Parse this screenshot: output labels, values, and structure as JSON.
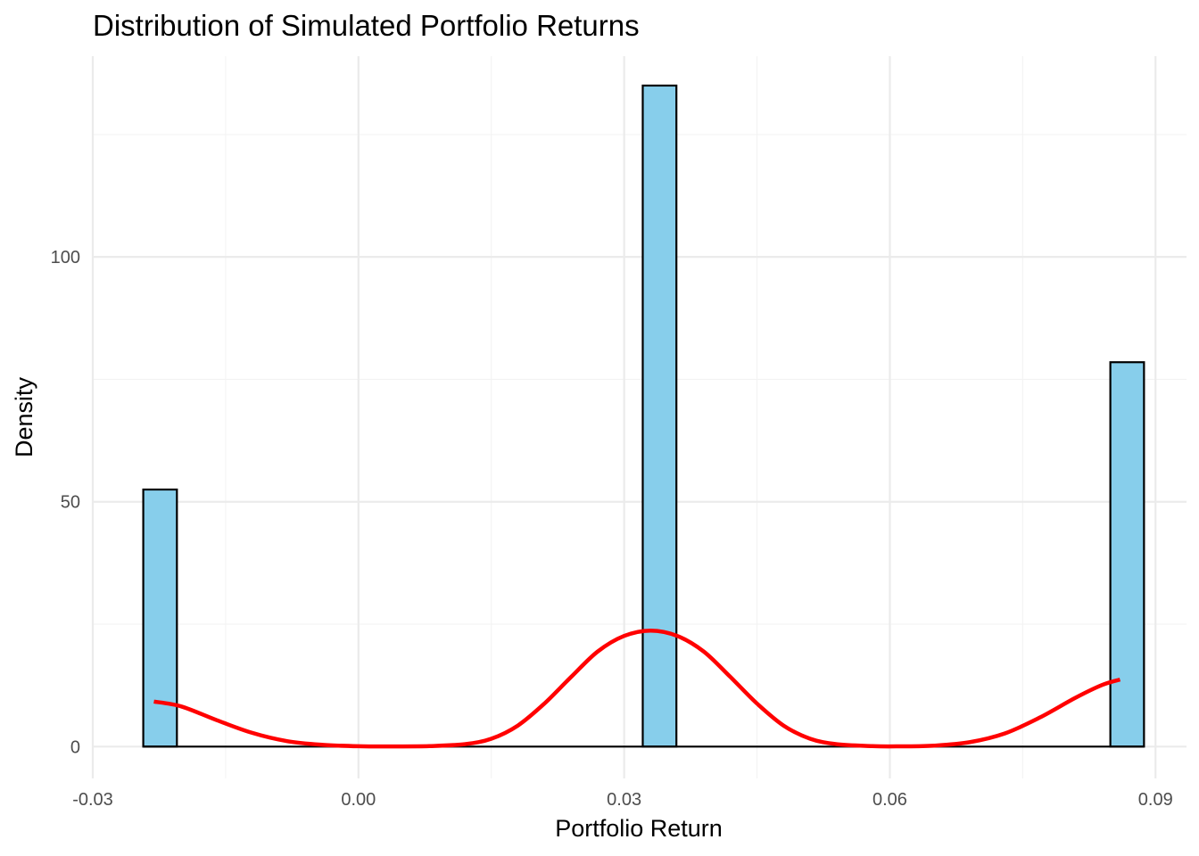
{
  "chart_data": {
    "type": "histogram",
    "title": "Distribution of Simulated Portfolio Returns",
    "xlabel": "Portfolio Return",
    "ylabel": "Density",
    "xlim": [
      -0.03,
      0.0935
    ],
    "ylim": [
      -6.5,
      141
    ],
    "x_ticks": [
      -0.03,
      0.0,
      0.03,
      0.06,
      0.09
    ],
    "x_tick_labels": [
      "-0.03",
      "0.00",
      "0.03",
      "0.06",
      "0.09"
    ],
    "y_ticks": [
      0,
      50,
      100
    ],
    "y_tick_labels": [
      "0",
      "50",
      "100"
    ],
    "grid": true,
    "bar_fill": "#87CEEB",
    "bar_stroke": "#000000",
    "density_color": "#FF0000",
    "bins": [
      {
        "x0": -0.0243,
        "x1": -0.0205,
        "density": 52.5
      },
      {
        "x0": 0.0321,
        "x1": 0.0359,
        "density": 135
      },
      {
        "x0": 0.0849,
        "x1": 0.0887,
        "density": 78.5
      }
    ],
    "density_curve": [
      [
        -0.0231,
        9.2
      ],
      [
        -0.02,
        8.2
      ],
      [
        -0.016,
        5.4
      ],
      [
        -0.012,
        2.8
      ],
      [
        -0.008,
        1.1
      ],
      [
        -0.004,
        0.35
      ],
      [
        0.0,
        0.08
      ],
      [
        0.004,
        0.03
      ],
      [
        0.008,
        0.1
      ],
      [
        0.012,
        0.5
      ],
      [
        0.015,
        1.6
      ],
      [
        0.018,
        4.3
      ],
      [
        0.021,
        8.8
      ],
      [
        0.024,
        14.2
      ],
      [
        0.027,
        19.4
      ],
      [
        0.03,
        22.6
      ],
      [
        0.033,
        23.7
      ],
      [
        0.036,
        22.6
      ],
      [
        0.039,
        19.4
      ],
      [
        0.042,
        14.2
      ],
      [
        0.045,
        8.8
      ],
      [
        0.048,
        4.3
      ],
      [
        0.051,
        1.6
      ],
      [
        0.054,
        0.5
      ],
      [
        0.058,
        0.1
      ],
      [
        0.061,
        0.05
      ],
      [
        0.065,
        0.2
      ],
      [
        0.069,
        0.9
      ],
      [
        0.073,
        2.7
      ],
      [
        0.077,
        6.0
      ],
      [
        0.081,
        10.0
      ],
      [
        0.084,
        12.6
      ],
      [
        0.086,
        13.7
      ]
    ]
  }
}
